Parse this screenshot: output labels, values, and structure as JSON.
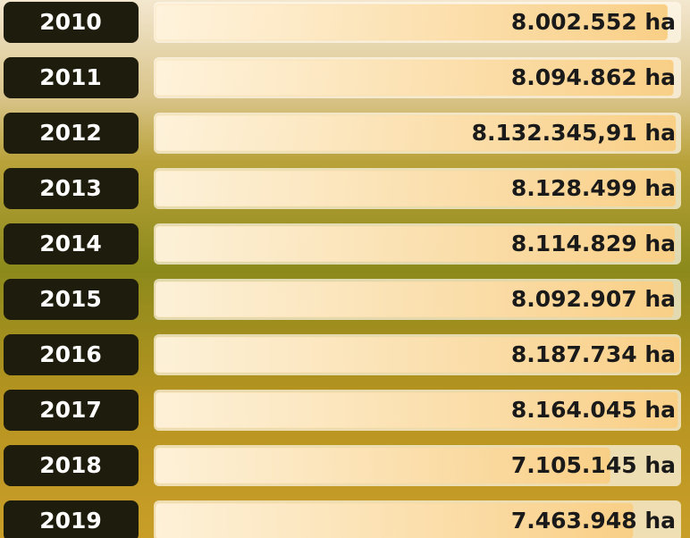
{
  "chart_data": {
    "type": "bar",
    "categories": [
      "2010",
      "2011",
      "2012",
      "2013",
      "2014",
      "2015",
      "2016",
      "2017",
      "2018",
      "2019"
    ],
    "values": [
      8002552,
      8094862,
      8132345.91,
      8128499,
      8114829,
      8092907,
      8187734,
      8164045,
      7105145,
      7463948
    ],
    "value_labels": [
      "8.002.552 ha",
      "8.094.862 ha",
      "8.132.345,91 ha",
      "8.128.499 ha",
      "8.114.829 ha",
      "8.092.907 ha",
      "8.187.734 ha",
      "8.164.045 ha",
      "7.105.145 ha",
      "7.463.948 ha"
    ],
    "color": "#f9cf86"
  }
}
